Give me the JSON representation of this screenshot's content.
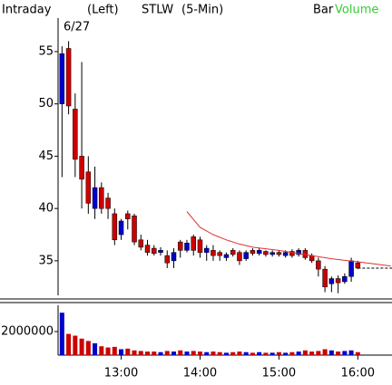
{
  "chart_data": [
    {
      "type": "candlestick",
      "header": [
        {
          "text": "Intraday"
        },
        {
          "text": "(Left)"
        },
        {
          "text": "STLW"
        },
        {
          "text": "(5-Min)"
        },
        {
          "text": "Bar"
        },
        {
          "text": "Volume",
          "color": "#33cc33"
        }
      ],
      "date_label": "6/27",
      "x": [
        735,
        740,
        745,
        750,
        755,
        760,
        765,
        770,
        775,
        780,
        785,
        790,
        795,
        800,
        805,
        810,
        815,
        820,
        825,
        830,
        835,
        840,
        845,
        850,
        855,
        860,
        865,
        870,
        875,
        880,
        885,
        890,
        895,
        900,
        905,
        910,
        915,
        920,
        925,
        930,
        935,
        940,
        945,
        950,
        955,
        960
      ],
      "open": [
        50,
        55.3,
        49.5,
        45,
        43.5,
        40,
        42,
        41,
        39.5,
        37.5,
        39.5,
        39.3,
        37,
        36.5,
        36.2,
        35.8,
        35.5,
        35,
        36.8,
        36,
        37.3,
        37,
        35.8,
        36,
        35.8,
        35.3,
        36,
        35.8,
        35.2,
        36,
        35.7,
        35.9,
        35.6,
        35.8,
        35.5,
        35.9,
        35.6,
        36,
        35.5,
        35,
        34.2,
        32.8,
        33.3,
        33,
        33.5,
        34.8
      ],
      "high": [
        55.5,
        56,
        51,
        54,
        45,
        44,
        42.5,
        41.5,
        40,
        39,
        39.8,
        39.5,
        37.5,
        37,
        36.5,
        36.3,
        36,
        36.2,
        37,
        37,
        37.5,
        37.3,
        36.5,
        36.5,
        36,
        35.8,
        36.2,
        36,
        36,
        36.2,
        36.2,
        36,
        36,
        36,
        36,
        36.1,
        36.2,
        36.2,
        35.7,
        35.3,
        34.5,
        33.5,
        33.6,
        33.8,
        35.3,
        35
      ],
      "low": [
        43,
        49,
        43,
        40,
        39.5,
        39,
        39.5,
        39,
        36.5,
        37,
        38,
        36.5,
        36,
        35.5,
        35.5,
        35.5,
        34.3,
        34.3,
        35.3,
        35.8,
        35.5,
        35.3,
        35,
        35,
        35,
        35,
        35.4,
        34.6,
        35,
        35.5,
        35.5,
        35.4,
        35.4,
        35.4,
        35.3,
        35.3,
        35.4,
        35.1,
        34.8,
        33.5,
        32,
        32,
        31.9,
        32.8,
        33,
        34.2
      ],
      "close": [
        54.8,
        49.8,
        44.7,
        42.8,
        40.5,
        42,
        40,
        40,
        37,
        38.8,
        39,
        36.8,
        36.3,
        35.8,
        35.7,
        36,
        34.8,
        35.8,
        36,
        36.7,
        36,
        35.8,
        36.2,
        35.5,
        35.5,
        35.6,
        35.6,
        35,
        35.8,
        35.7,
        36,
        35.6,
        35.8,
        35.6,
        35.8,
        35.5,
        36,
        35.3,
        35,
        34.2,
        32.5,
        33.3,
        32.9,
        33.5,
        35,
        34.3
      ],
      "up_color": "#0000cc",
      "down_color": "#cc0000",
      "line": {
        "color": "#dd3333",
        "x": [
          830,
          840,
          850,
          860,
          870,
          880,
          900,
          920,
          940,
          960,
          985
        ],
        "values": [
          39.7,
          38.2,
          37.5,
          37,
          36.6,
          36.3,
          36,
          35.6,
          35.2,
          34.9,
          34.5
        ]
      },
      "last_price": 34.3,
      "xlim": [
        732,
        986
      ],
      "ylim": [
        31.7,
        58.2
      ],
      "yticks": [
        35,
        40,
        45,
        50,
        55
      ]
    },
    {
      "type": "bar",
      "x": [
        735,
        740,
        745,
        750,
        755,
        760,
        765,
        770,
        775,
        780,
        785,
        790,
        795,
        800,
        805,
        810,
        815,
        820,
        825,
        830,
        835,
        840,
        845,
        850,
        855,
        860,
        865,
        870,
        875,
        880,
        885,
        890,
        895,
        900,
        905,
        910,
        915,
        920,
        925,
        930,
        935,
        940,
        945,
        950,
        955,
        960
      ],
      "values": [
        3600000,
        1800000,
        1650000,
        1400000,
        1200000,
        1000000,
        750000,
        650000,
        700000,
        500000,
        550000,
        400000,
        350000,
        300000,
        300000,
        250000,
        350000,
        300000,
        400000,
        300000,
        350000,
        300000,
        250000,
        300000,
        250000,
        200000,
        250000,
        300000,
        250000,
        200000,
        250000,
        200000,
        200000,
        250000,
        200000,
        250000,
        300000,
        400000,
        300000,
        350000,
        500000,
        400000,
        300000,
        350000,
        400000,
        250000
      ],
      "xlim": [
        732,
        986
      ],
      "ylim": [
        0,
        4230000
      ],
      "yticks": [
        2000000
      ],
      "xticks": [
        {
          "value": 780,
          "label": "13:00"
        },
        {
          "value": 840,
          "label": "14:00"
        },
        {
          "value": 900,
          "label": "15:00"
        },
        {
          "value": 960,
          "label": "16:00"
        }
      ]
    }
  ]
}
